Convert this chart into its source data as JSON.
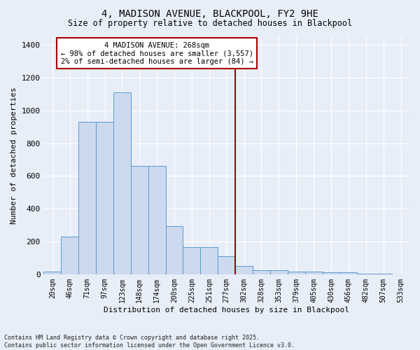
{
  "title": "4, MADISON AVENUE, BLACKPOOL, FY2 9HE",
  "subtitle": "Size of property relative to detached houses in Blackpool",
  "xlabel": "Distribution of detached houses by size in Blackpool",
  "ylabel": "Number of detached properties",
  "categories": [
    "20sqm",
    "46sqm",
    "71sqm",
    "97sqm",
    "123sqm",
    "148sqm",
    "174sqm",
    "200sqm",
    "225sqm",
    "251sqm",
    "277sqm",
    "302sqm",
    "328sqm",
    "353sqm",
    "379sqm",
    "405sqm",
    "430sqm",
    "456sqm",
    "482sqm",
    "507sqm",
    "533sqm"
  ],
  "values": [
    15,
    230,
    930,
    930,
    1110,
    660,
    660,
    295,
    165,
    165,
    110,
    50,
    25,
    25,
    18,
    18,
    10,
    10,
    5,
    5,
    0
  ],
  "bar_color": "#ccd9ee",
  "bar_edge_color": "#5b9bd5",
  "background_color": "#e8eef8",
  "grid_color": "#ffffff",
  "vline_x": 10.5,
  "vline_color": "#aa0000",
  "annotation_text": "4 MADISON AVENUE: 268sqm\n← 98% of detached houses are smaller (3,557)\n2% of semi-detached houses are larger (84) →",
  "annotation_box_color": "#ffffff",
  "annotation_box_edge": "#aa0000",
  "footnote": "Contains HM Land Registry data © Crown copyright and database right 2025.\nContains public sector information licensed under the Open Government Licence v3.0.",
  "ylim": [
    0,
    1450
  ],
  "yticks": [
    0,
    200,
    400,
    600,
    800,
    1000,
    1200,
    1400
  ]
}
